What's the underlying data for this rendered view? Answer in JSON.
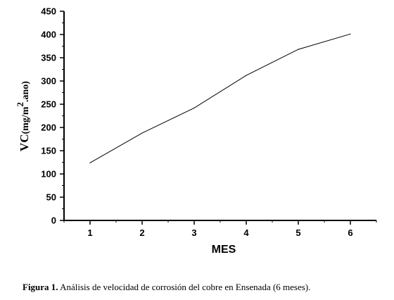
{
  "chart_data": {
    "type": "line",
    "x": [
      1,
      2,
      3,
      4,
      5,
      6
    ],
    "values": [
      124,
      188,
      242,
      312,
      368,
      401
    ],
    "xlabel": "MES",
    "ylabel": {
      "prefix": "VC",
      "unit_part1": "(mg/m",
      "unit_sup": "2",
      "unit_part2": ".ano)"
    },
    "xlim": [
      0.5,
      6.5
    ],
    "ylim": [
      0,
      450
    ],
    "xticks": [
      "1",
      "2",
      "3",
      "4",
      "5",
      "6"
    ],
    "yticks": [
      "0",
      "50",
      "100",
      "150",
      "200",
      "250",
      "300",
      "350",
      "400",
      "450"
    ],
    "grid": false,
    "line_color": "#000000"
  },
  "caption": {
    "label": "Figura 1.",
    "text": " Análisis de velocidad de corrosión del cobre en Ensenada (6 meses)."
  }
}
